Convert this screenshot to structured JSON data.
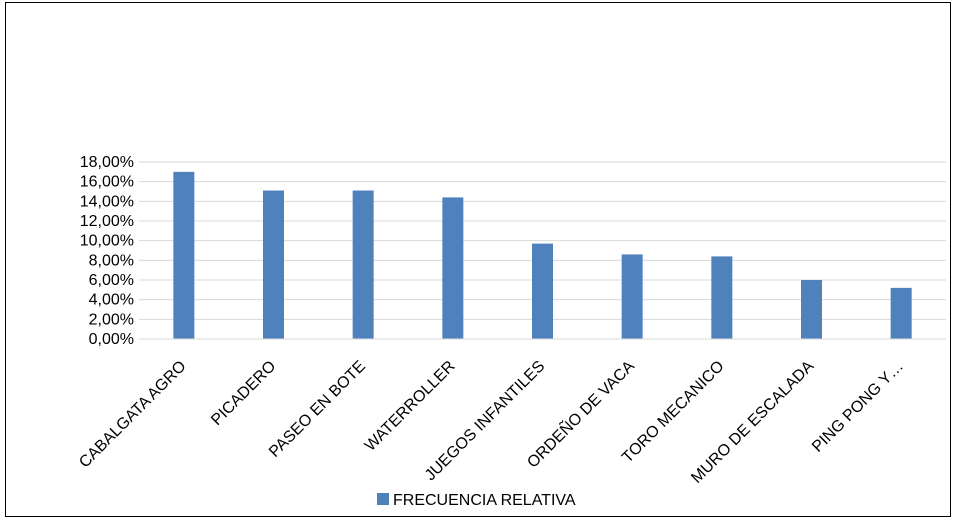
{
  "chart_data": {
    "type": "bar",
    "title": "",
    "xlabel": "",
    "ylabel": "",
    "categories": [
      "CABALGATA AGRO",
      "PICADERO",
      "PASEO EN BOTE",
      "WATERROLLER",
      "JUEGOS INFANTILES",
      "ORDEÑO DE VACA",
      "TORO MECANICO",
      "MURO DE ESCALADA",
      "PING PONG Y…"
    ],
    "series": [
      {
        "name": "FRECUENCIA RELATIVA",
        "values": [
          17.0,
          15.1,
          15.1,
          14.4,
          9.7,
          8.6,
          8.4,
          6.0,
          5.2
        ],
        "color": "#4f81bd"
      }
    ],
    "ylim": [
      0,
      18
    ],
    "y_ticks": [
      "0,00%",
      "2,00%",
      "4,00%",
      "6,00%",
      "8,00%",
      "10,00%",
      "12,00%",
      "14,00%",
      "16,00%",
      "18,00%"
    ],
    "grid": true,
    "grid_color": "#d9d9d9",
    "legend_position": "bottom"
  }
}
